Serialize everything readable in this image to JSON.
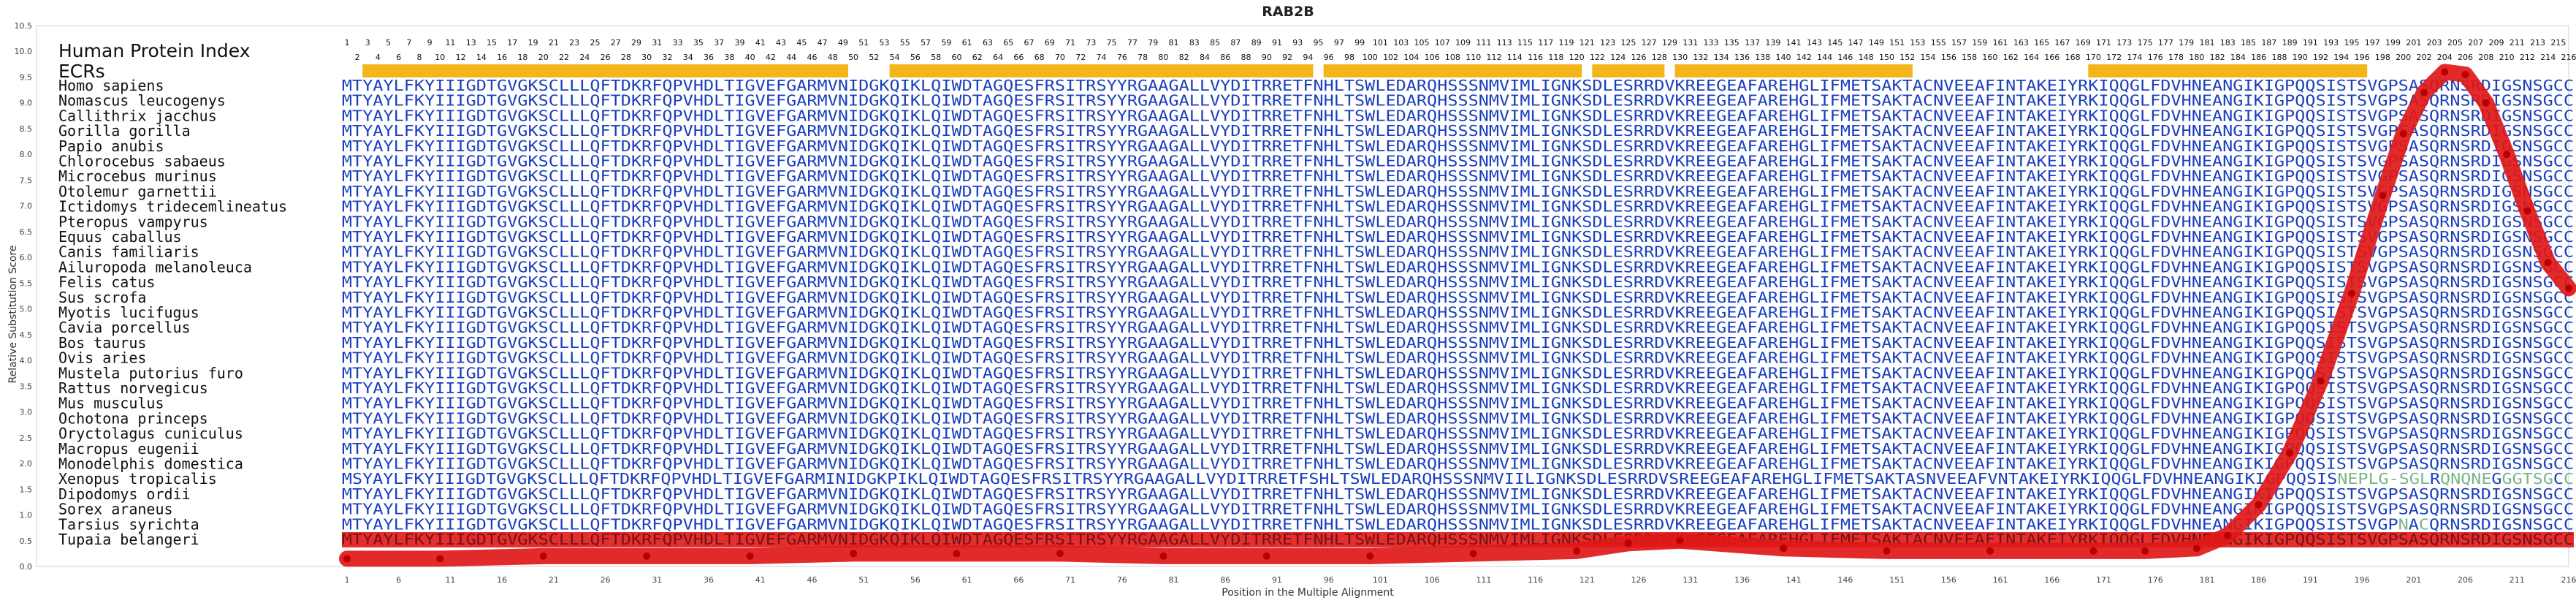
{
  "chart_data": {
    "type": "line",
    "title": "RAB2B",
    "ylabel": "Relative Substitution Score",
    "xlabel": "Position in the Multiple Alignment",
    "ylim": [
      0,
      10.5
    ],
    "xlim": [
      1,
      216
    ],
    "yticks": [
      "0.0",
      "0.5",
      "1.0",
      "1.5",
      "2.0",
      "2.5",
      "3.0",
      "3.5",
      "4.0",
      "4.5",
      "5.0",
      "5.5",
      "6.0",
      "6.5",
      "7.0",
      "7.5",
      "8.0",
      "8.5",
      "9.0",
      "9.5",
      "10.0",
      "10.5"
    ],
    "xticks": [
      1,
      6,
      11,
      16,
      21,
      26,
      31,
      36,
      41,
      46,
      51,
      56,
      61,
      66,
      71,
      76,
      81,
      86,
      91,
      96,
      101,
      106,
      111,
      116,
      121,
      126,
      131,
      136,
      141,
      146,
      151,
      156,
      161,
      166,
      171,
      176,
      181,
      186,
      191,
      196,
      201,
      206,
      211,
      216
    ],
    "header_label": "Human Protein Index",
    "ecr_label": "ECRs",
    "index_row1": [
      "1",
      "3",
      "5",
      "7",
      "9",
      "11",
      "13",
      "15",
      "17",
      "19",
      "21",
      "23",
      "25",
      "27",
      "29",
      "31",
      "33",
      "35",
      "37",
      "39",
      "41",
      "43",
      "45",
      "47",
      "49",
      "51",
      "53",
      "55",
      "57",
      "59",
      "61",
      "63",
      "65",
      "67",
      "69",
      "71",
      "73",
      "75",
      "77",
      "79",
      "81",
      "83",
      "85",
      "87",
      "89",
      "91",
      "93",
      "95",
      "97",
      "99",
      "101",
      "103",
      "105",
      "107",
      "109",
      "111",
      "113",
      "115",
      "117",
      "119",
      "121",
      "123",
      "125",
      "127",
      "129",
      "131",
      "133",
      "135",
      "137",
      "139",
      "141",
      "143",
      "145",
      "147",
      "149",
      "151",
      "153",
      "155",
      "157",
      "159",
      "161",
      "163",
      "165",
      "167",
      "169",
      "171",
      "173",
      "175",
      "177",
      "179",
      "181",
      "183",
      "185",
      "187",
      "189",
      "191",
      "193",
      "195",
      "197",
      "199",
      "201",
      "203",
      "205",
      "207",
      "209",
      "211",
      "213",
      "215"
    ],
    "index_row2": [
      "2",
      "4",
      "6",
      "8",
      "10",
      "12",
      "14",
      "16",
      "18",
      "20",
      "22",
      "24",
      "26",
      "28",
      "30",
      "32",
      "34",
      "36",
      "38",
      "40",
      "42",
      "44",
      "46",
      "48",
      "50",
      "52",
      "54",
      "56",
      "58",
      "60",
      "62",
      "64",
      "66",
      "68",
      "70",
      "72",
      "74",
      "76",
      "78",
      "80",
      "82",
      "84",
      "86",
      "88",
      "90",
      "92",
      "94",
      "96",
      "98",
      "100",
      "102",
      "104",
      "106",
      "108",
      "110",
      "112",
      "114",
      "116",
      "118",
      "120",
      "122",
      "124",
      "126",
      "128",
      "130",
      "132",
      "134",
      "136",
      "138",
      "140",
      "142",
      "144",
      "146",
      "148",
      "150",
      "152",
      "154",
      "156",
      "158",
      "160",
      "162",
      "164",
      "166",
      "168",
      "170",
      "172",
      "174",
      "176",
      "178",
      "180",
      "182",
      "184",
      "186",
      "188",
      "190",
      "192",
      "194",
      "196",
      "198",
      "200",
      "202",
      "204",
      "206",
      "208",
      "210",
      "212",
      "214",
      "216"
    ],
    "ecr_regions": [
      [
        3,
        49
      ],
      [
        54,
        94
      ],
      [
        96,
        120
      ],
      [
        122,
        128
      ],
      [
        130,
        152
      ],
      [
        170,
        196
      ]
    ],
    "species": [
      "Homo sapiens",
      "Nomascus leucogenys",
      "Callithrix jacchus",
      "Gorilla gorilla",
      "Papio anubis",
      "Chlorocebus sabaeus",
      "Microcebus murinus",
      "Otolemur garnettii",
      "Ictidomys tridecemlineatus",
      "Pteropus vampyrus",
      "Equus caballus",
      "Canis familiaris",
      "Ailuropoda melanoleuca",
      "Felis catus",
      "Sus scrofa",
      "Myotis lucifugus",
      "Cavia porcellus",
      "Bos taurus",
      "Ovis aries",
      "Mustela putorius furo",
      "Rattus norvegicus",
      "Mus musculus",
      "Ochotona princeps",
      "Oryctolagus cuniculus",
      "Macropus eugenii",
      "Monodelphis domestica",
      "Xenopus tropicalis",
      "Dipodomys ordii",
      "Sorex araneus",
      "Tarsius syrichta",
      "Tupaia belangeri"
    ],
    "sequences": [
      "MTYAYLFKYIIIGDTGVGKSCLLLQFTDKRFQPVHDLTIGVEFGARMVNIDGKQIKLQIWDTAGQESFRSITRSYYRGAAGALLVYDITRRETFNHLTSWLEDARQHSSSNMVIMLIGNKSDLESRRDVKREEGEAFAREHGLIFMETSAKTACNVEEAFINTAKEIYRKIQQGLFDVHNEANGIKIGPQQSISTSVGPSASQRNSRDIGSNSGCC",
      "MTYAYLFKYIIIGDTGVGKSCLLLQFTDKRFQPVHDLTIGVEFGARMVNIDGKQIKLQIWDTAGQESFRSITRSYYRGAAGALLVYDITRRETFNHLTSWLEDARQHSSSNMVIMLIGNKSDLESRRDVKREEGEAFAREHGLIFMETSAKTACNVEEAFINTAKEIYRKIQQGLFDVHNEANGIKIGPQQSISTSVGPSASQRNSRDIGSNSGCC",
      "MTYAYLFKYIIIGDTGVGKSCLLLQFTDKRFQPVHDLTIGVEFGARMVNIDGKQIKLQIWDTAGQESFRSITRSYYRGAAGALLVYDITRRETFNHLTSWLEDARQHSSSNMVIMLIGNKSDLESRRDVKREEGEAFAREHGLIFMETSAKTACNVEEAFINTAKEIYRKIQQGLFDVHNEANGIKIGPQQSISTSVGPSASQRNSRDIGSNSGCC",
      "MTYAYLFKYIIIGDTGVGKSCLLLQFTDKRFQPVHDLTIGVEFGARMVNIDGKQIKLQIWDTAGQESFRSITRSYYRGAAGALLVYDITRRETFNHLTSWLEDARQHSSSNMVIMLIGNKSDLESRRDVKREEGEAFAREHGLIFMETSAKTACNVEEAFINTAKEIYRKIQQGLFDVHNEANGIKIGPQQSISTSVGPSASQRNSRDIGSNSGCC",
      "MTYAYLFKYIIIGDTGVGKSCLLLQFTDKRFQPVHDLTIGVEFGARMVNIDGKQIKLQIWDTAGQESFRSITRSYYRGAAGALLVYDITRRETFNHLTSWLEDARQHSSSNMVIMLIGNKSDLESRRDVKREEGEAFAREHGLIFMETSAKTACNVEEAFINTAKEIYRKIQQGLFDVHNEANGIKIGPQQSISTSVGPSASQRNSRDIGSNSGCC",
      "MTYAYLFKYIIIGDTGVGKSCLLLQFTDKRFQPVHDLTIGVEFGARMVNIDGKQIKLQIWDTAGQESFRSITRSYYRGAAGALLVYDITRRETFNHLTSWLEDARQHSSSNMVIMLIGNKSDLESRRDVKREEGEAFAREHGLIFMETSAKTACNVEEAFINTAKEIYRKIQQGLFDVHNEANGIKIGPQQSISTSVGPSASQRNSRDIGSNSGCC",
      "MTYAYLFKYIIIGDTGVGKSCLLLQFTDKRFQPVHDLTIGVEFGARMVNIDGKQIKLQIWDTAGQESFRSITRSYYRGAAGALLVYDITRRETFNHLTSWLEDARQHSSSNMVIMLIGNKSDLESRRDVKREEGEAFAREHGLIFMETSAKTACNVEEAFINTAKEIYRKIQQGLFDVHNEANGIKIGPQQSISTSVGPSASQRNSRDIGSNSGCC",
      "MTYAYLFKYIIIGDTGVGKSCLLLQFTDKRFQPVHDLTIGVEFGARMVNIDGKQIKLQIWDTAGQESFRSITRSYYRGAAGALLVYDITRRETFNHLTSWLEDARQHSSSNMVIMLIGNKSDLESRRDVKREEGEAFAREHGLIFMETSAKTACNVEEAFINTAKEIYRKIQQGLFDVHNEANGIKIGPQQSISTSVGPSASQRNSRDIGSNSGCC",
      "MTYAYLFKYIIIGDTGVGKSCLLLQFTDKRFQPVHDLTIGVEFGARMVNIDGKQIKLQIWDTAGQESFRSITRSYYRGAAGALLVYDITRRETFNHLTSWLEDARQHSSSNMVIMLIGNKSDLESRRDVKREEGEAFAREHGLIFMETSAKTACNVEEAFINTAKEIYRKIQQGLFDVHNEANGIKIGPQQSISTSVGPSASQRNSRDIGSNSGCC",
      "MTYAYLFKYIIIGDTGVGKSCLLLQFTDKRFQPVHDLTIGVEFGARMVNIDGKQIKLQIWDTAGQESFRSITRSYYRGAAGALLVYDITRRETFNHLTSWLEDARQHSSSNMVIMLIGNKSDLESRRDVKREEGEAFAREHGLIFMETSAKTACNVEEAFINTAKEIYRKIQQGLFDVHNEANGIKIGPQQSISTSVGPSASQRNSRDIGSNSGCC",
      "MTYAYLFKYIIIGDTGVGKSCLLLQFTDKRFQPVHDLTIGVEFGARMVNIDGKQIKLQIWDTAGQESFRSITRSYYRGAAGALLVYDITRRETFNHLTSWLEDARQHSSSNMVIMLIGNKSDLESRRDVKREEGEAFAREHGLIFMETSAKTACNVEEAFINTAKEIYRKIQQGLFDVHNEANGIKIGPQQSISTSVGPSASQRNSRDIGSNSGCC",
      "MTYAYLFKYIIIGDTGVGKSCLLLQFTDKRFQPVHDLTIGVEFGARMVNIDGKQIKLQIWDTAGQESFRSITRSYYRGAAGALLVYDITRRETFNHLTSWLEDARQHSSSNMVIMLIGNKSDLESRRDVKREEGEAFAREHGLIFMETSAKTACNVEEAFINTAKEIYRKIQQGLFDVHNEANGIKIGPQQSISTSVGPSASQRNSRDIGSNSGCC",
      "MTYAYLFKYIIIGDTGVGKSCLLLQFTDKRFQPVHDLTIGVEFGARMVNIDGKQIKLQIWDTAGQESFRSITRSYYRGAAGALLVYDITRRETFNHLTSWLEDARQHSSSNMVIMLIGNKSDLESRRDVKREEGEAFAREHGLIFMETSAKTACNVEEAFINTAKEIYRKIQQGLFDVHNEANGIKIGPQQSISTSVGPSASQRNSRDIGSNSGCC",
      "MTYAYLFKYIIIGDTGVGKSCLLLQFTDKRFQPVHDLTIGVEFGARMVNIDGKQIKLQIWDTAGQESFRSITRSYYRGAAGALLVYDITRRETFNHLTSWLEDARQHSSSNMVIMLIGNKSDLESRRDVKREEGEAFAREHGLIFMETSAKTACNVEEAFINTAKEIYRKIQQGLFDVHNEANGIKIGPQQSISTSVGPSASQRNSRDIGSNSGCC",
      "MTYAYLFKYIIIGDTGVGKSCLLLQFTDKRFQPVHDLTIGVEFGARMVNIDGKQIKLQIWDTAGQESFRSITRSYYRGAAGALLVYDITRRETFNHLTSWLEDARQHSSSNMVIMLIGNKSDLESRRDVKREEGEAFAREHGLIFMETSAKTACNVEEAFINTAKEIYRKIQQGLFDVHNEANGIKIGPQQSISTSVGPSASQRNSRDIGSNSGCC",
      "MTYAYLFKYIIIGDTGVGKSCLLLQFTDKRFQPVHDLTIGVEFGARMVNIDGKQIKLQIWDTAGQESFRSITRSYYRGAAGALLVYDITRRETFNHLTSWLEDARQHSSSNMVIMLIGNKSDLESRRDVKREEGEAFAREHGLIFMETSAKTACNVEEAFINTAKEIYRKIQQGLFDVHNEANGIKIGPQQSISTSVGPSASQRNSRDIGSNSGCC",
      "MTYAYLFKYIIIGDTGVGKSCLLLQFTDKRFQPVHDLTIGVEFGARMVNIDGKQIKLQIWDTAGQESFRSITRSYYRGAAGALLVYDITRRETFNHLTSWLEDARQHSSSNMVIMLIGNKSDLESRRDVKREEGEAFAREHGLIFMETSAKTACNVEEAFINTAKEIYRKIQQGLFDVHNEANGIKIGPQQSISTSVGPSASQRNSRDIGSNSGCC",
      "MTYAYLFKYIIIGDTGVGKSCLLLQFTDKRFQPVHDLTIGVEFGARMVNIDGKQIKLQIWDTAGQESFRSITRSYYRGAAGALLVYDITRRETFNHLTSWLEDARQHSSSNMVIMLIGNKSDLESRRDVKREEGEAFAREHGLIFMETSAKTACNVEEAFINTAKEIYRKIQQGLFDVHNEANGIKIGPQQSISTSVGPSASQRNSRDIGSNSGCC",
      "MTYAYLFKYIIIGDTGVGKSCLLLQFTDKRFQPVHDLTIGVEFGARMVNIDGKQIKLQIWDTAGQESFRSITRSYYRGAAGALLVYDITRRETFNHLTSWLEDARQHSSSNMVIMLIGNKSDLESRRDVKREEGEAFAREHGLIFMETSAKTACNVEEAFINTAKEIYRKIQQGLFDVHNEANGIKIGPQQSISTSVGPSASQRNSRDIGSNSGCC",
      "MTYAYLFKYIIIGDTGVGKSCLLLQFTDKRFQPVHDLTIGVEFGARMVNIDGKQIKLQIWDTAGQESFRSITRSYYRGAAGALLVYDITRRETFNHLTSWLEDARQHSSSNMVIMLIGNKSDLESRRDVKREEGEAFAREHGLIFMETSAKTACNVEEAFINTAKEIYRKIQQGLFDVHNEANGIKIGPQQSISTSVGPSASQRNSRDIGSNSGCC",
      "MTYAYLFKYIIIGDTGVGKSCLLLQFTDKRFQPVHDLTIGVEFGARMVNIDGKQIKLQIWDTAGQESFRSITRSYYRGAAGALLVYDITRRETFNHLTSWLEDARQHSSSNMVIMLIGNKSDLESRRDVKREEGEAFAREHGLIFMETSAKTACNVEEAFINTAKEIYRKIQQGLFDVHNEANGIKIGPQQSISTSVGPSASQRNSRDIGSNSGCC",
      "MTYAYLFKYIIIGDTGVGKSCLLLQFTDKRFQPVHDLTIGVEFGARMVNIDGKQIKLQIWDTAGQESFRSITRSYYRGAAGALLVYDITRRETFNHLTSWLEDARQHSSSNMVIMLIGNKSDLESRRDVKREEGEAFAREHGLIFMETSAKTACNVEEAFINTAKEIYRKIQQGLFDVHNEANGIKIGPQQSISTSVGPSASQRNSRDIGSNSGCC",
      "MTYAYLFKYIIIGDTGVGKSCLLLQFTDKRFQPVHDLTIGVEFGARMVNIDGKQIKLQIWDTAGQESFRSITRSYYRGAAGALLVYDITRRETFNHLTSWLEDARQHSSSNMVIMLIGNKSDLESRRDVKREEGEAFAREHGLIFMETSAKTACNVEEAFINTAKEIYRKIQQGLFDVHNEANGIKIGPQQSISTSVGPSASQRNSRDIGSNSGCC",
      "MTYAYLFKYIIIGDTGVGKSCLLLQFTDKRFQPVHDLTIGVEFGARMVNIDGKQIKLQIWDTAGQESFRSITRSYYRGAAGALLVYDITRRETFNHLTSWLEDARQHSSSNMVIMLIGNKSDLESRRDVKREEGEAFAREHGLIFMETSAKTACNVEEAFINTAKEIYRKIQQGLFDVHNEANGIKIGPQQSISTSVGPSASQRNSRDIGSNSGCC",
      "MTYAYLFKYIIIGDTGVGKSCLLLQFTDKRFQPVHDLTIGVEFGARMVNIDGKQIKLQIWDTAGQESFRSITRSYYRGAAGALLVYDITRRETFNHLTSWLEDARQHSSSNMVIMLIGNKSDLESRRDVKREEGEAFAREHGLIFMETSAKTACNVEEAFINTAKEIYRKIQQGLFDVHNEANGIKIGPQQSISTSVGPSASQRNSRDIGSNSGCC",
      "MTYAYLFKYIIIGDTGVGKSCLLLQFTDKRFQPVHDLTIGVEFGARMVNIDGKQIKLQIWDTAGQESFRSITRSYYRGAAGALLVYDITRRETFNHLTSWLEDARQHSSSNMVIMLIGNKSDLESRRDVKREEGEAFAREHGLIFMETSAKTACNVEEAFINTAKEIYRKIQQGLFDVHNEANGIKIGPQQSISTSVGPSASQRNSRDIGSNSGCC",
      "MSYAYLFKYIIIGDTGVGKSCLLLQFTDKRFQPVHDLTIGVEFGARMINIDGKPIKLQIWDTAGQESFRSITRSYYRGAAGALLVYDITRRETFSHLTSWLEDARQHSSSNMVIILIGNKSDLESRRDVSREEGEAFAREHGLIFMETSAKTASNVEEAFVNTAKEIYRKIQQGLFDVHNEANGIKIGPQQSISNEPLG-SGLRQNQNEGGGTSGCC",
      "MTYAYLFKYIIIGDTGVGKSCLLLQFTDKRFQPVHDLTIGVEFGARMVNIDGKQIKLQIWDTAGQESFRSITRSYYRGAAGALLVYDITRRETFNHLTSWLEDARQHSSSNMVIMLIGNKSDLESRRDVKREEGEAFAREHGLIFMETSAKTACNVEEAFINTAKEIYRKIQQGLFDVHNEANGIKIGPQQSISTSVGPSASQRNSRDIGSNSGCC",
      "MTYAYLFKYIIIGDTGVGKSCLLLQFTDKRFQPVHDLTIGVEFGARMVNIDGKQIKLQIWDTAGQESFRSITRSYYRGAAGALLVYDITRRETFNHLTSWLEDARQHSSSNMVIMLIGNKSDLESRRDVKREEGEAFAREHGLIFMETSAKTACNVEEAFINTAKEIYRKIQQGLFDVHNEANGIKIGPQQSISTSVGPSASQRNSRDIGSNSGCC",
      "MTYAYLFKYIIIGDTGVGKSCLLLQFTDKRFQPVHDLTIGVEFGARMVNIDGKQIKLQIWDTAGQESFRSITRSYYRGAAGALLVYDITRRETFNHLTSWLEDARQHSSSNMVIMLIGNKSDLESRRDVKREEGEAFAREHGLIFMETSAKTACNVEEAFINTAKEIYRKIQQGLFDVHNEANGIKIGPQQSISTSVGPNACQRNSRDIGSNSGCC",
      "MTYAYLFKYIIIGDTGVGKSCLLLQFTDKRFQPVHDLTIGVEFGARMVNIDGKQIKLQIWDTAGQESFRSITRSYYRGAAGALLVYDITRRETFNHLTSWLEDARQHSSSNMVIMLIGNKSDLESRRDVKREEGEAFAREHGLIFMETSAKTACNVEEAFINTAKEIYRKIQQGLFDVHNEANGIKIGPQQSISTSVGPSASQRNSRDIGSNSGCC"
    ],
    "series": [
      {
        "x": [
          1,
          10,
          20,
          30,
          40,
          50,
          60,
          70,
          80,
          90,
          100,
          110,
          120,
          125,
          130,
          140,
          150,
          160,
          170,
          175,
          180,
          183,
          186,
          189,
          192,
          195,
          198,
          200,
          202,
          204,
          206,
          208,
          210,
          212,
          214,
          216
        ],
        "values": [
          0.15,
          0.15,
          0.2,
          0.2,
          0.2,
          0.25,
          0.25,
          0.25,
          0.2,
          0.2,
          0.2,
          0.25,
          0.3,
          0.45,
          0.5,
          0.35,
          0.3,
          0.3,
          0.3,
          0.3,
          0.35,
          0.6,
          1.2,
          2.2,
          3.6,
          5.3,
          7.2,
          8.4,
          9.2,
          9.6,
          9.55,
          9.0,
          8.0,
          6.9,
          5.9,
          5.4
        ]
      }
    ],
    "colors": {
      "sequence": "#1a3fbf",
      "divergent": "#7ab58a",
      "ecr": "#f2b61a",
      "curve": "#e01818",
      "highlight_bg": "#e01818"
    },
    "grid": false,
    "legend": "none"
  }
}
